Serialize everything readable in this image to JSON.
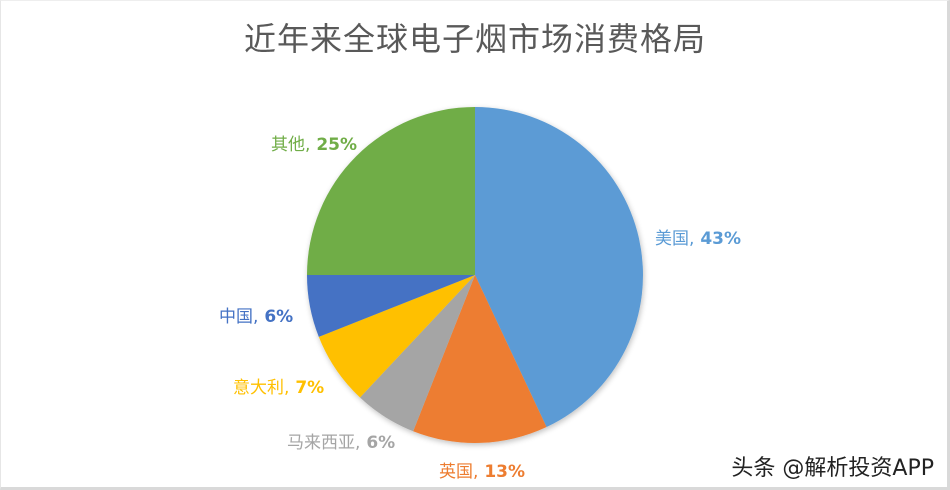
{
  "chart_data": {
    "type": "pie",
    "title": "近年来全球电子烟市场消费格局",
    "categories": [
      "美国",
      "英国",
      "马来西亚",
      "意大利",
      "中国",
      "其他"
    ],
    "values": [
      43,
      13,
      6,
      7,
      6,
      25
    ],
    "unit": "%",
    "colors": [
      "#5b9bd5",
      "#ed7d31",
      "#a5a5a5",
      "#ffc000",
      "#4472c4",
      "#70ad47"
    ],
    "start_angle_deg": 0,
    "direction": "clockwise",
    "legend": "none",
    "data_labels": [
      {
        "category": "美国",
        "text": "美国, 43%"
      },
      {
        "category": "英国",
        "text": "英国, 13%"
      },
      {
        "category": "马来西亚",
        "text": "马来西亚, 6%"
      },
      {
        "category": "意大利",
        "text": "意大利, 7%"
      },
      {
        "category": "中国",
        "text": "中国, 6%"
      },
      {
        "category": "其他",
        "text": "其他, 25%"
      }
    ]
  },
  "labels": {
    "us": {
      "name": "美国,",
      "pct": "43%"
    },
    "uk": {
      "name": "英国,",
      "pct": "13%"
    },
    "my": {
      "name": "马来西亚,",
      "pct": "6%"
    },
    "it": {
      "name": "意大利,",
      "pct": "7%"
    },
    "cn": {
      "name": "中国,",
      "pct": "6%"
    },
    "other": {
      "name": "其他,",
      "pct": "25%"
    }
  },
  "watermark": "头条 @解析投资APP"
}
